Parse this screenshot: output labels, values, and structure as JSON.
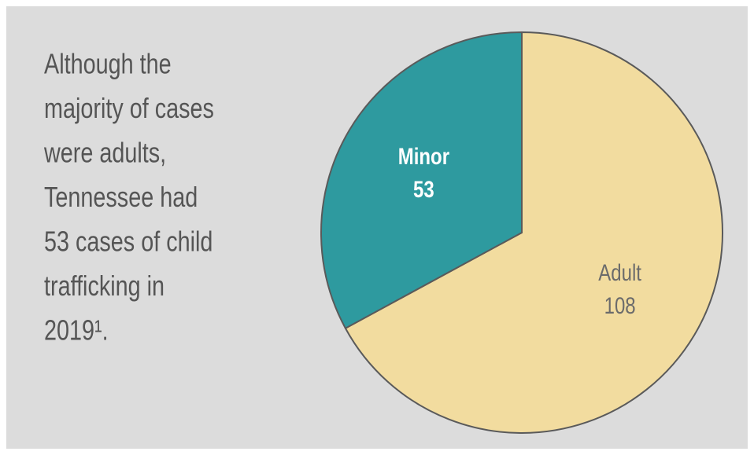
{
  "chart_data": {
    "type": "pie",
    "annotation": [
      "Although the",
      "majority of cases",
      "were adults,",
      "Tennessee had",
      "53 cases of child",
      "trafficking in",
      "2019¹."
    ],
    "categories": [
      "Adult",
      "Minor"
    ],
    "values": [
      108,
      53
    ],
    "colors": [
      "#f2dc9f",
      "#2e9a9f"
    ],
    "label_colors": [
      "#6b6b6b",
      "#ffffff"
    ]
  }
}
